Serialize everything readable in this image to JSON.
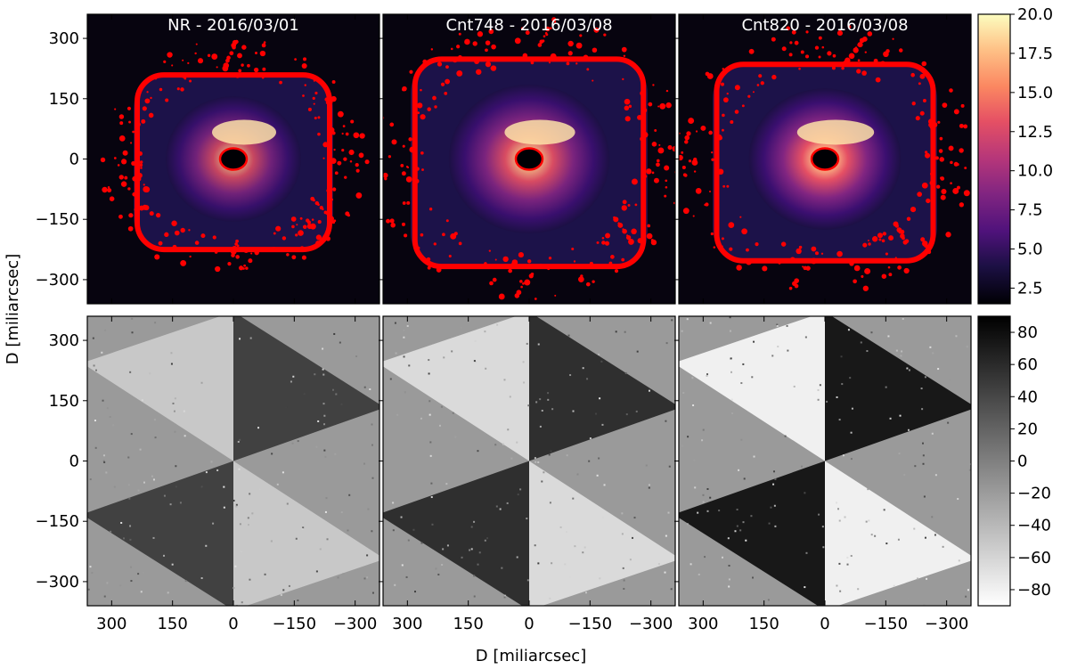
{
  "chart_data": {
    "type": "heatmap",
    "xlabel": "D [miliarcsec]",
    "ylabel": "D [miliarcsec]",
    "xlim": [
      360,
      -360
    ],
    "ylim": [
      -360,
      360
    ],
    "x_ticks": [
      300,
      150,
      0,
      -150,
      -300
    ],
    "x_tick_labels": [
      "300",
      "150",
      "0",
      "−150",
      "−300"
    ],
    "y_ticks": [
      300,
      150,
      0,
      -150,
      -300
    ],
    "y_tick_labels": [
      "300",
      "150",
      "0",
      "−150",
      "−300"
    ],
    "panels": [
      {
        "row": 0,
        "col": 0,
        "title": "NR - 2016/03/01",
        "map": "intensity",
        "contour_color": "#ff0000",
        "halo_size": 0.8,
        "peak": 1.0
      },
      {
        "row": 0,
        "col": 1,
        "title": "Cnt748 - 2016/03/08",
        "map": "intensity",
        "contour_color": "#ff0000",
        "halo_size": 0.95,
        "peak": 1.1
      },
      {
        "row": 0,
        "col": 2,
        "title": "Cnt820 - 2016/03/08",
        "map": "intensity",
        "contour_color": "#ff0000",
        "halo_size": 0.9,
        "peak": 1.2
      },
      {
        "row": 1,
        "col": 0,
        "title": "",
        "map": "angle",
        "contrast": 0.55
      },
      {
        "row": 1,
        "col": 1,
        "title": "",
        "map": "angle",
        "contrast": 0.75
      },
      {
        "row": 1,
        "col": 2,
        "title": "",
        "map": "angle",
        "contrast": 1.0
      }
    ],
    "colorbars": [
      {
        "row": 0,
        "colormap": "magma",
        "range": [
          1.5,
          20.0
        ],
        "ticks": [
          2.5,
          5.0,
          7.5,
          10.0,
          12.5,
          15.0,
          17.5,
          20.0
        ],
        "tick_labels": [
          "2.5",
          "5.0",
          "7.5",
          "10.0",
          "12.5",
          "15.0",
          "17.5",
          "20.0"
        ]
      },
      {
        "row": 1,
        "colormap": "gray_r",
        "range": [
          -90,
          90
        ],
        "ticks": [
          -80,
          -60,
          -40,
          -20,
          0,
          20,
          40,
          60,
          80
        ],
        "tick_labels": [
          "−80",
          "−60",
          "−40",
          "−20",
          "0",
          "20",
          "40",
          "60",
          "80"
        ]
      }
    ]
  }
}
